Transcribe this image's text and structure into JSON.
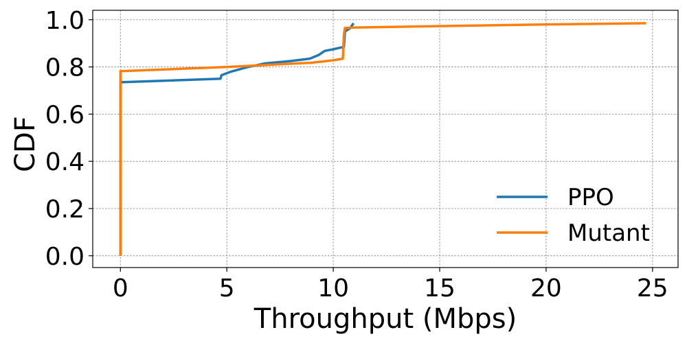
{
  "chart_data": {
    "type": "line",
    "xlabel": "Throughput (Mbps)",
    "ylabel": "CDF",
    "xlim": [
      -1.3,
      26.2
    ],
    "ylim": [
      -0.05,
      1.04
    ],
    "xticks": [
      0,
      5,
      10,
      15,
      20,
      25
    ],
    "yticks": [
      0.0,
      0.2,
      0.4,
      0.6,
      0.8,
      1.0
    ],
    "xtick_labels": [
      "0",
      "5",
      "10",
      "15",
      "20",
      "25"
    ],
    "ytick_labels": [
      "0.0",
      "0.2",
      "0.4",
      "0.6",
      "0.8",
      "1.0"
    ],
    "grid": true,
    "legend_position": "lower-right",
    "series": [
      {
        "name": "PPO",
        "color": "#1f77b4",
        "points": [
          [
            0,
            0.0
          ],
          [
            0,
            0.735
          ],
          [
            4.7,
            0.75
          ],
          [
            4.75,
            0.765
          ],
          [
            5.2,
            0.78
          ],
          [
            6.0,
            0.8
          ],
          [
            6.8,
            0.815
          ],
          [
            8.0,
            0.825
          ],
          [
            8.9,
            0.835
          ],
          [
            9.3,
            0.85
          ],
          [
            9.6,
            0.868
          ],
          [
            10.0,
            0.875
          ],
          [
            10.5,
            0.885
          ],
          [
            10.55,
            0.95
          ],
          [
            10.8,
            0.965
          ],
          [
            10.95,
            0.985
          ]
        ]
      },
      {
        "name": "Mutant",
        "color": "#ff7f0e",
        "points": [
          [
            0,
            0.0
          ],
          [
            0,
            0.782
          ],
          [
            5.0,
            0.8
          ],
          [
            9.0,
            0.818
          ],
          [
            10.0,
            0.828
          ],
          [
            10.45,
            0.835
          ],
          [
            10.5,
            0.94
          ],
          [
            10.55,
            0.965
          ],
          [
            11.0,
            0.967
          ],
          [
            20.0,
            0.98
          ],
          [
            24.7,
            0.985
          ]
        ]
      }
    ]
  }
}
